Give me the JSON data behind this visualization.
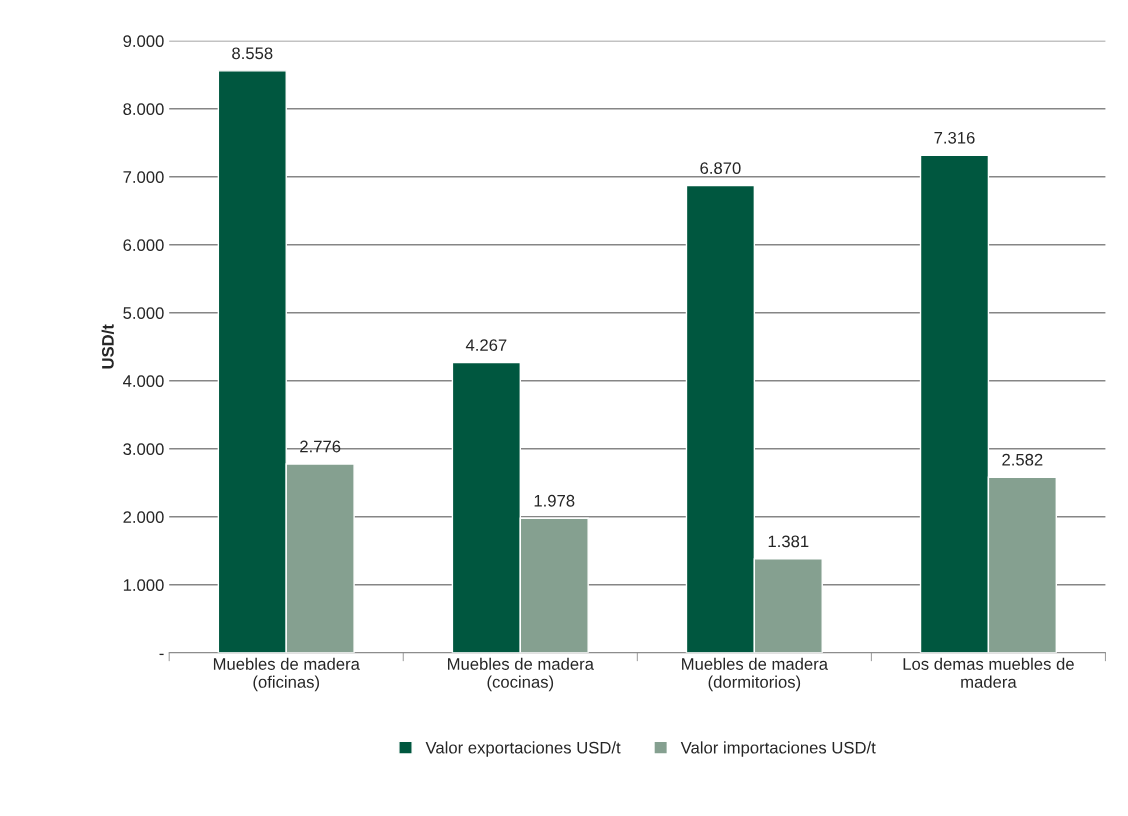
{
  "chart_data": {
    "type": "bar",
    "ylabel": "USD/t",
    "categories": [
      "Muebles de madera\n(oficinas)",
      "Muebles de madera\n(cocinas)",
      "Muebles de madera\n(dormitorios)",
      "Los demas muebles de\nmadera"
    ],
    "series": [
      {
        "name": "Valor exportaciones USD/t",
        "color": "#00573f",
        "values": [
          8558,
          4267,
          6870,
          7316
        ],
        "value_labels": [
          "8.558",
          "4.267",
          "6.870",
          "7.316"
        ]
      },
      {
        "name": "Valor importaciones USD/t",
        "color": "#85a090",
        "values": [
          2776,
          1978,
          1381,
          2582
        ],
        "value_labels": [
          "2.776",
          "1.978",
          "1.381",
          "2.582"
        ]
      }
    ],
    "ylim": [
      0,
      9000
    ],
    "yticks": [
      {
        "value": 0,
        "label": "-"
      },
      {
        "value": 1000,
        "label": "1.000"
      },
      {
        "value": 2000,
        "label": "2.000"
      },
      {
        "value": 3000,
        "label": "3.000"
      },
      {
        "value": 4000,
        "label": "4.000"
      },
      {
        "value": 5000,
        "label": "5.000"
      },
      {
        "value": 6000,
        "label": "6.000"
      },
      {
        "value": 7000,
        "label": "7.000"
      },
      {
        "value": 8000,
        "label": "8.000"
      },
      {
        "value": 9000,
        "label": "9.000"
      }
    ],
    "grid": "y",
    "legend": "bottom"
  }
}
